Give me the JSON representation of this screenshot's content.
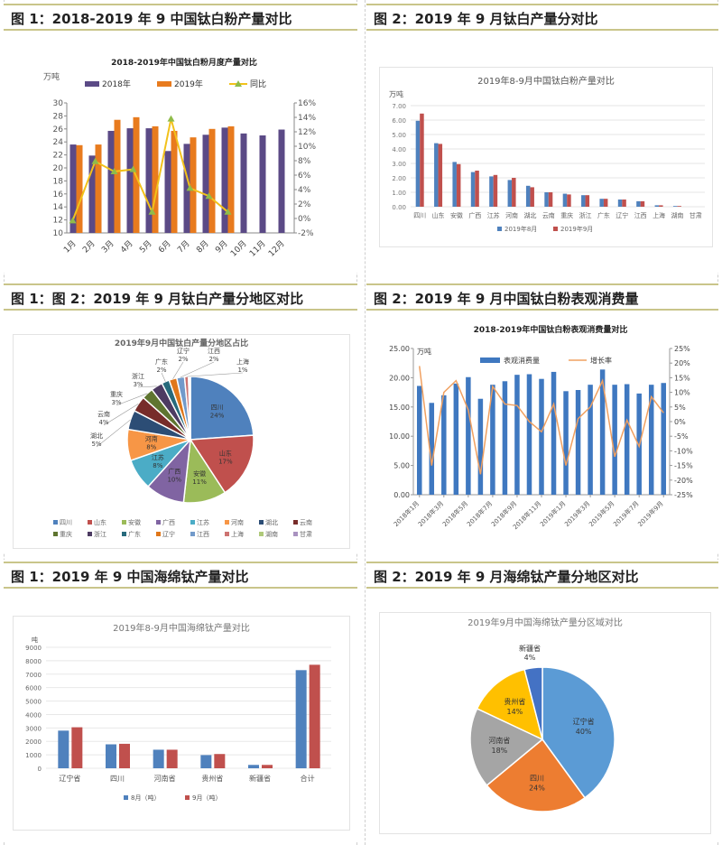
{
  "panels": {
    "p1": {
      "title": "图 1：2018-2019 年 9 中国钛白粉产量对比"
    },
    "p2": {
      "title": "图 2：2019 年 9 月钛白产量分对比"
    },
    "p3": {
      "title": "图 1：图 2：2019 年 9 月钛白产量分地区对比"
    },
    "p4": {
      "title": "图 2：2019 年 9 月中国钛白粉表观消费量"
    },
    "p5": {
      "title": "图 1：2019 年 9 中国海绵钛产量对比"
    },
    "p6": {
      "title": "图 2：2019 年 9 月海绵钛产量分地区对比"
    }
  },
  "colors": {
    "purple": "#5b4a86",
    "orange": "#e87b1e",
    "yellow_line": "#f2c21b",
    "green_marker": "#8fbc4a",
    "blue": "#4f81bd",
    "red": "#c0504d",
    "bar_blue": "#3f78c0",
    "line_orange": "#f0a060"
  },
  "chart_data": [
    {
      "id": "c1",
      "type": "bar+line",
      "title": "2018-2019年中国钛白粉月度产量对比",
      "ylabel": "万吨",
      "ylim": [
        10,
        30
      ],
      "yticks": [
        "10",
        "12",
        "14",
        "16",
        "18",
        "20",
        "22",
        "24",
        "26",
        "28",
        "30"
      ],
      "y2lim": [
        -2,
        16
      ],
      "y2ticks": [
        "-2%",
        "0%",
        "2%",
        "4%",
        "6%",
        "8%",
        "10%",
        "12%",
        "14%",
        "16%"
      ],
      "categories": [
        "1月",
        "2月",
        "3月",
        "4月",
        "5月",
        "6月",
        "7月",
        "8月",
        "9月",
        "10月",
        "11月",
        "12月"
      ],
      "series": [
        {
          "name": "2018年",
          "type": "bar",
          "values": [
            23.6,
            21.9,
            25.7,
            26.1,
            26.1,
            22.6,
            23.7,
            25.1,
            26.2,
            25.3,
            25.0,
            25.9
          ]
        },
        {
          "name": "2019年",
          "type": "bar",
          "values": [
            23.5,
            23.6,
            27.4,
            27.8,
            26.4,
            25.7,
            24.7,
            26.0,
            26.4,
            null,
            null,
            null
          ]
        },
        {
          "name": "同比",
          "type": "line",
          "axis": "y2",
          "values": [
            -0.3,
            7.9,
            6.5,
            6.8,
            0.9,
            13.8,
            4.2,
            3.1,
            0.9,
            null,
            null,
            null
          ]
        }
      ],
      "legend": [
        "2018年",
        "2019年",
        "同比"
      ],
      "legend_position": "top"
    },
    {
      "id": "c2",
      "type": "bar",
      "title": "2019年8-9月中国钛白粉产量对比",
      "ylabel": "万吨",
      "ylim": [
        0,
        7
      ],
      "yticks": [
        "0.00",
        "1.00",
        "2.00",
        "3.00",
        "4.00",
        "5.00",
        "6.00",
        "7.00"
      ],
      "categories": [
        "四川",
        "山东",
        "安徽",
        "广西",
        "江苏",
        "河南",
        "湖北",
        "云南",
        "重庆",
        "浙江",
        "广东",
        "辽宁",
        "江西",
        "上海",
        "湖南",
        "甘肃"
      ],
      "series": [
        {
          "name": "2019年8月",
          "values": [
            5.95,
            4.4,
            3.1,
            2.4,
            2.1,
            1.85,
            1.45,
            1.0,
            0.9,
            0.8,
            0.55,
            0.5,
            0.38,
            0.1,
            0.05,
            0.0
          ]
        },
        {
          "name": "2019年9月",
          "values": [
            6.45,
            4.35,
            2.95,
            2.5,
            2.2,
            2.0,
            1.35,
            1.0,
            0.85,
            0.8,
            0.55,
            0.5,
            0.38,
            0.1,
            0.05,
            0.0
          ]
        }
      ],
      "legend_position": "bottom"
    },
    {
      "id": "c3",
      "type": "pie",
      "title": "2019年9月中国钛白产量分地区占比",
      "slices": [
        {
          "label": "四川",
          "value": 24,
          "text": "24%",
          "color": "#4f81bd"
        },
        {
          "label": "山东",
          "value": 17,
          "text": "17%",
          "color": "#c0504d"
        },
        {
          "label": "安徽",
          "value": 11,
          "text": "11%",
          "color": "#9bbb59"
        },
        {
          "label": "广西",
          "value": 10,
          "text": "10%",
          "color": "#8064a2"
        },
        {
          "label": "江苏",
          "value": 8,
          "text": "8%",
          "color": "#4bacc6"
        },
        {
          "label": "河南",
          "value": 8,
          "text": "8%",
          "color": "#f79646"
        },
        {
          "label": "湖北",
          "value": 5,
          "text": "5%",
          "color": "#2c4d75"
        },
        {
          "label": "云南",
          "value": 4,
          "text": "4%",
          "color": "#772c2a"
        },
        {
          "label": "重庆",
          "value": 3,
          "text": "3%",
          "color": "#5f7530"
        },
        {
          "label": "浙江",
          "value": 3,
          "text": "3%",
          "color": "#4d3b62"
        },
        {
          "label": "广东",
          "value": 2,
          "text": "2%",
          "color": "#276a7c"
        },
        {
          "label": "辽宁",
          "value": 2,
          "text": "2%",
          "color": "#e0771a"
        },
        {
          "label": "江西",
          "value": 2,
          "text": "2%",
          "color": "#729aca"
        },
        {
          "label": "上海",
          "value": 1,
          "text": "1%",
          "color": "#cd7371"
        },
        {
          "label": "湖南",
          "value": 0.3,
          "text": "",
          "color": "#afc97a"
        },
        {
          "label": "甘肃",
          "value": 0.2,
          "text": "",
          "color": "#a992c0"
        }
      ],
      "legend_position": "bottom"
    },
    {
      "id": "c4",
      "type": "bar+line",
      "title": "2018-2019年中国钛白粉表观消费量对比",
      "ylabel": "万吨",
      "ylim": [
        0,
        25
      ],
      "yticks": [
        "0.00",
        "5.00",
        "10.00",
        "15.00",
        "20.00",
        "25.00"
      ],
      "y2lim": [
        -25,
        25
      ],
      "y2ticks": [
        "-25%",
        "-20%",
        "-15%",
        "-10%",
        "-5%",
        "0%",
        "5%",
        "10%",
        "15%",
        "20%",
        "25%"
      ],
      "categories": [
        "2018年1月",
        "2018年2月",
        "2018年3月",
        "2018年4月",
        "2018年5月",
        "2018年6月",
        "2018年7月",
        "2018年8月",
        "2018年9月",
        "2018年10月",
        "2018年11月",
        "2018年12月",
        "2019年1月",
        "2019年2月",
        "2019年3月",
        "2019年4月",
        "2019年5月",
        "2019年6月",
        "2019年7月",
        "2019年8月",
        "2019年9月"
      ],
      "tick_labels": [
        "2018年1月",
        "2018年3月",
        "2018年5月",
        "2018年7月",
        "2018年9月",
        "2018年11月",
        "2019年1月",
        "2019年3月",
        "2019年5月",
        "2019年7月",
        "2019年9月"
      ],
      "series": [
        {
          "name": "表观消费量",
          "type": "bar",
          "values": [
            18.6,
            15.7,
            17.0,
            19.0,
            20.1,
            16.4,
            18.8,
            19.4,
            20.5,
            20.6,
            19.8,
            21.0,
            17.7,
            17.9,
            18.8,
            21.4,
            18.8,
            18.9,
            17.3,
            18.8,
            19.1
          ]
        },
        {
          "name": "增长率",
          "type": "line",
          "axis": "y2",
          "values": [
            19,
            -15,
            10,
            14,
            4,
            -18,
            12,
            6,
            5.5,
            0,
            -3.5,
            6,
            -15,
            1,
            5,
            14,
            -12,
            0.5,
            -8.5,
            8.5,
            3
          ]
        }
      ],
      "legend": [
        "表观消费量",
        "增长率"
      ],
      "legend_position": "top"
    },
    {
      "id": "c5",
      "type": "bar",
      "title": "2019年8-9月中国海绵钛产量对比",
      "ylabel": "吨",
      "ylim": [
        0,
        9000
      ],
      "yticks": [
        "0",
        "1000",
        "2000",
        "3000",
        "4000",
        "5000",
        "6000",
        "7000",
        "8000",
        "9000"
      ],
      "categories": [
        "辽宁省",
        "四川",
        "河南省",
        "贵州省",
        "新疆省",
        "合计"
      ],
      "series": [
        {
          "name": "8月（吨）",
          "values": [
            2800,
            1780,
            1380,
            980,
            250,
            7300
          ]
        },
        {
          "name": "9月（吨）",
          "values": [
            3050,
            1820,
            1380,
            1060,
            250,
            7700
          ]
        }
      ],
      "legend_position": "bottom"
    },
    {
      "id": "c6",
      "type": "pie",
      "title": "2019年9月中国海绵钛产量分区域对比",
      "slices": [
        {
          "label": "辽宁省",
          "value": 40,
          "text": "40%",
          "color": "#5b9bd5"
        },
        {
          "label": "四川",
          "value": 24,
          "text": "24%",
          "color": "#ed7d31"
        },
        {
          "label": "河南省",
          "value": 18,
          "text": "18%",
          "color": "#a5a5a5"
        },
        {
          "label": "贵州省",
          "value": 14,
          "text": "14%",
          "color": "#ffc000"
        },
        {
          "label": "新疆省",
          "value": 4,
          "text": "4%",
          "color": "#4472c4"
        }
      ]
    }
  ]
}
